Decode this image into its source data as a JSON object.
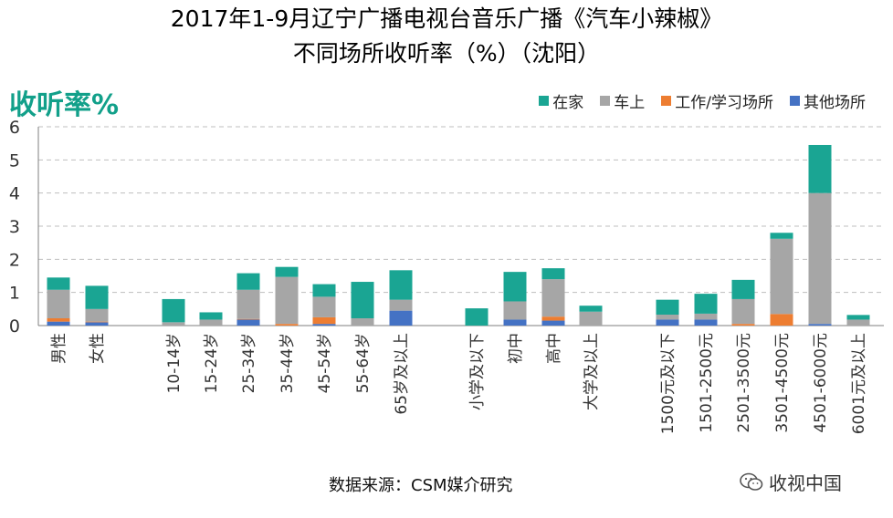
{
  "title_line1": "2017年1-9月辽宁广播电视台音乐广播《汽车小辣椒》",
  "title_line2": "不同场所收听率（%）（沈阳）",
  "source": "数据来源：CSM媒介研究",
  "watermark": "收视中国",
  "colors": {
    "home": "#1aa593",
    "car": "#a6a6a6",
    "work": "#ed7d31",
    "other": "#4472c4",
    "grid": "#bfbfbf",
    "axis": "#7f7f7f"
  },
  "chart_data": {
    "type": "bar",
    "stacked": true,
    "title": "2017年1-9月辽宁广播电视台音乐广播《汽车小辣椒》不同场所收听率（%）（沈阳）",
    "ylabel": "收听率%",
    "ylim": [
      0,
      6
    ],
    "yticks": [
      "0",
      "1",
      "2",
      "3",
      "4",
      "5",
      "6"
    ],
    "grid": true,
    "legend_position": "top-right",
    "groups": [
      [
        "男性",
        "女性"
      ],
      [
        "10-14岁",
        "15-24岁",
        "25-34岁",
        "35-44岁",
        "45-54岁",
        "55-64岁",
        "65岁及以上"
      ],
      [
        "小学及以下",
        "初中",
        "高中",
        "大学及以上"
      ],
      [
        "1500元及以下",
        "1501-2500元",
        "2501-3500元",
        "3501-4500元",
        "4501-6000元",
        "6001元及以上"
      ]
    ],
    "categories": [
      "男性",
      "女性",
      "10-14岁",
      "15-24岁",
      "25-34岁",
      "35-44岁",
      "45-54岁",
      "55-64岁",
      "65岁及以上",
      "小学及以下",
      "初中",
      "高中",
      "大学及以上",
      "1500元及以下",
      "1501-2500元",
      "2501-3500元",
      "3501-4500元",
      "4501-6000元",
      "6001元及以上"
    ],
    "series": [
      {
        "name": "其他场所",
        "key": "other",
        "values": [
          0.12,
          0.1,
          0.0,
          0.0,
          0.18,
          0.0,
          0.05,
          0.0,
          0.45,
          0.0,
          0.18,
          0.15,
          0.0,
          0.18,
          0.18,
          0.0,
          0.0,
          0.05,
          0.0
        ]
      },
      {
        "name": "工作/学习场所",
        "key": "work",
        "values": [
          0.1,
          0.02,
          0.0,
          0.0,
          0.02,
          0.05,
          0.2,
          0.0,
          0.0,
          0.0,
          0.0,
          0.12,
          0.0,
          0.0,
          0.0,
          0.05,
          0.35,
          0.0,
          0.0
        ]
      },
      {
        "name": "车上",
        "key": "car",
        "values": [
          0.86,
          0.38,
          0.1,
          0.18,
          0.88,
          1.42,
          0.62,
          0.22,
          0.33,
          0.0,
          0.55,
          1.13,
          0.42,
          0.15,
          0.18,
          0.75,
          2.27,
          3.95,
          0.18
        ]
      },
      {
        "name": "在家",
        "key": "home",
        "values": [
          0.37,
          0.7,
          0.7,
          0.22,
          0.5,
          0.3,
          0.38,
          1.1,
          0.89,
          0.52,
          0.89,
          0.33,
          0.18,
          0.45,
          0.6,
          0.58,
          0.18,
          1.45,
          0.14
        ]
      }
    ],
    "legend": [
      "在家",
      "车上",
      "工作/学习场所",
      "其他场所"
    ]
  }
}
